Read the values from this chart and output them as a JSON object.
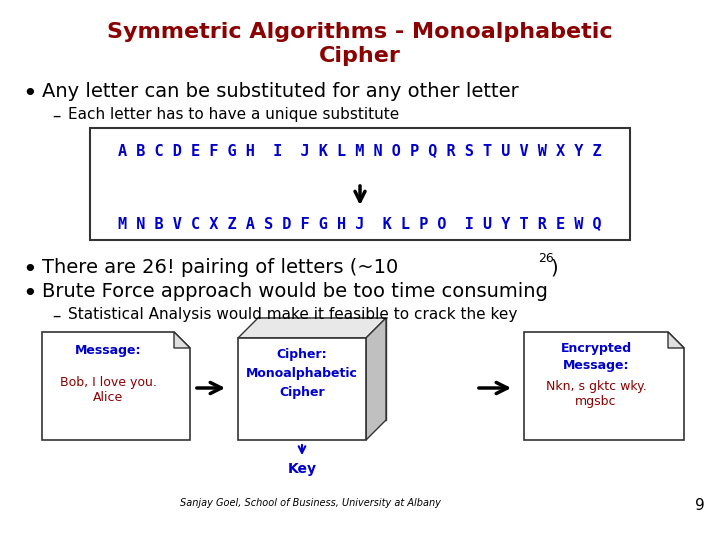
{
  "title_line1": "Symmetric Algorithms - Monoalphabetic",
  "title_line2": "Cipher",
  "title_color": "#8B0000",
  "bullet1": "Any letter can be substituted for any other letter",
  "sub_bullet1": "Each letter has to have a unique substitute",
  "alphabet_row": "A B C D E F G H  I  J K L M N O P Q R S T U V W X Y Z",
  "cipher_row": "M N B V C X Z A S D F G H J  K L P O  I U Y T R E W Q",
  "bullet2": "There are 26! pairing of letters (~10",
  "bullet2_sup": "26",
  "bullet2_end": ")",
  "bullet3": "Brute Force approach would be too time consuming",
  "sub_bullet3": "Statistical Analysis would make it feasible to crack the key",
  "box1_title": "Message:",
  "box1_body": "Bob, I love you.\nAlice",
  "box2_title": "Cipher:\nMonoalphabetic\nCipher",
  "box3_title": "Encrypted\nMessage:",
  "box3_body": "Nkn, s gktc wky.\nmgsbc",
  "footnote": "Sanjay Goel, School of Business, University at Albany",
  "page_num": "9",
  "key_label": "Key",
  "bg_color": "#ffffff",
  "text_color": "#1a1a1a",
  "blue_color": "#0000CC",
  "red_color": "#8B0000",
  "box_border_color": "#333333"
}
